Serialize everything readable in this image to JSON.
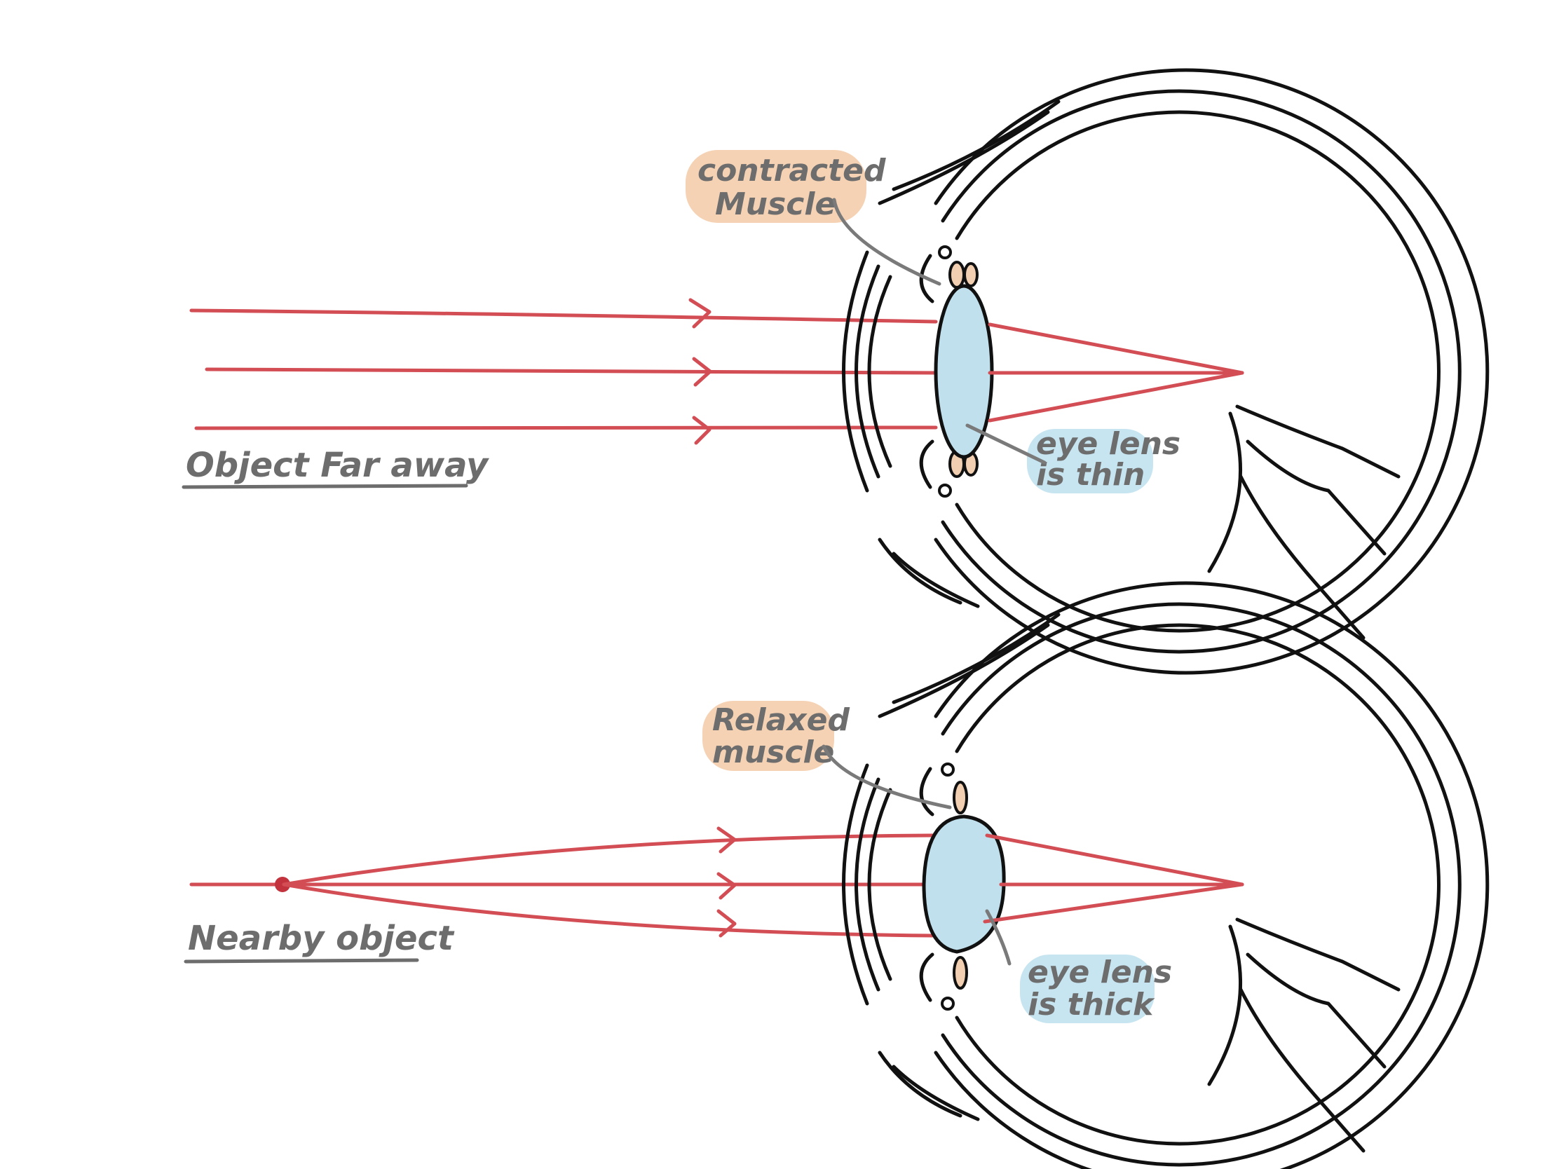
{
  "top_panel": {
    "caption": "Object Far away",
    "muscle_label_line1": "contracted",
    "muscle_label_line2": "Muscle",
    "lens_label_line1": "eye lens",
    "lens_label_line2": "is thin"
  },
  "bottom_panel": {
    "caption": "Nearby object",
    "muscle_label_line1": "Relaxed",
    "muscle_label_line2": "muscle",
    "lens_label_line1": "eye lens",
    "lens_label_line2": "is thick"
  },
  "colors": {
    "ray": "#d34d55",
    "lens_fill": "#bfe0ec",
    "muscle_fill": "#f2cfb0",
    "muscle_tag_bg": "#f6d2b4",
    "lens_tag_bg": "#c7e5f1",
    "label_text": "#6d6d6d",
    "outline": "#111111"
  }
}
